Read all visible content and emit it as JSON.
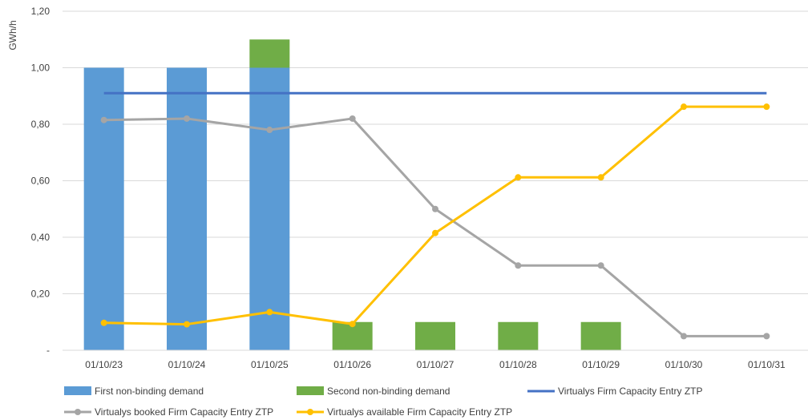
{
  "chart_data": {
    "type": "bar",
    "title": "",
    "xlabel": "",
    "ylabel": "GWh/h",
    "ylim": [
      0,
      1.2
    ],
    "yticks": [
      0,
      0.2,
      0.4,
      0.6,
      0.8,
      1.0,
      1.2
    ],
    "ytick_labels": [
      "-",
      "0,20",
      "0,40",
      "0,60",
      "0,80",
      "1,00",
      "1,20"
    ],
    "categories": [
      "01/10/23",
      "01/10/24",
      "01/10/25",
      "01/10/26",
      "01/10/27",
      "01/10/28",
      "01/10/29",
      "01/10/30",
      "01/10/31"
    ],
    "grid": true,
    "legend_position": "bottom",
    "series": [
      {
        "name": "First non-binding demand",
        "kind": "bar",
        "stack": "demand",
        "color": "#5b9bd5",
        "values": [
          1.0,
          1.0,
          1.0,
          0,
          0,
          0,
          0,
          0,
          0
        ]
      },
      {
        "name": "Second non-binding demand",
        "kind": "bar",
        "stack": "demand",
        "color": "#70ad47",
        "values": [
          0,
          0,
          0.1,
          0.1,
          0.1,
          0.1,
          0.1,
          0,
          0
        ]
      },
      {
        "name": "Virtualys Firm Capacity Entry ZTP",
        "kind": "line",
        "markers": false,
        "color": "#4472c4",
        "values": [
          0.91,
          0.91,
          0.91,
          0.91,
          0.91,
          0.91,
          0.91,
          0.91,
          0.91
        ]
      },
      {
        "name": "Virtualys booked Firm Capacity Entry ZTP",
        "kind": "line",
        "markers": true,
        "color": "#a5a5a5",
        "values": [
          0.815,
          0.82,
          0.78,
          0.82,
          0.5,
          0.3,
          0.3,
          0.05,
          0.05
        ]
      },
      {
        "name": "Virtualys available Firm Capacity Entry ZTP",
        "kind": "line",
        "markers": true,
        "color": "#ffc000",
        "values": [
          0.097,
          0.092,
          0.135,
          0.093,
          0.415,
          0.612,
          0.612,
          0.862,
          0.862
        ]
      }
    ]
  }
}
